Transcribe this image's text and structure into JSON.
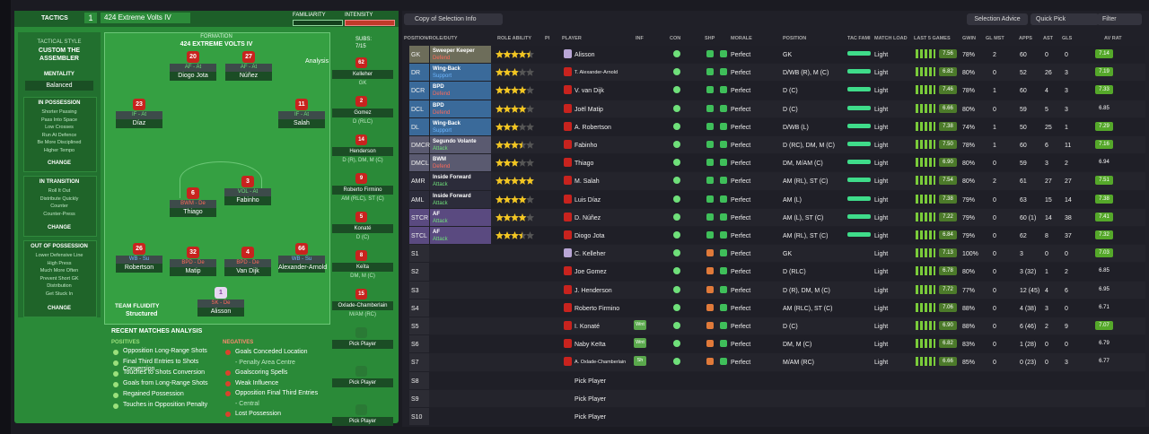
{
  "header": {
    "tab": "TACTICS",
    "slot": "1",
    "tactic": "424 Extreme Volts IV",
    "familiarity": "FAMILIARITY",
    "intensity": "INTENSITY"
  },
  "sidebar": {
    "style_label": "TACTICAL STYLE",
    "style": "CUSTOM THE ASSEMBLER",
    "mentality_label": "MENTALITY",
    "mentality": "Balanced",
    "groups": [
      {
        "title": "IN POSSESSION",
        "items": [
          "Shorter Passing",
          "Pass Into Space",
          "Low Crosses",
          "Run At Defence",
          "Be More Disciplined",
          "Higher Tempo"
        ],
        "button": "CHANGE"
      },
      {
        "title": "IN TRANSITION",
        "items": [
          "Roll It Out",
          "Distribute Quickly",
          "Counter",
          "Counter-Press"
        ],
        "button": "CHANGE"
      },
      {
        "title": "OUT OF POSSESSION",
        "items": [
          "Lower Defensive Line",
          "High Press",
          "Much More Often",
          "Prevent Short GK",
          "Distribution",
          "Get Stuck In"
        ],
        "button": "CHANGE"
      }
    ]
  },
  "pitch": {
    "label": "FORMATION",
    "formation": "424 EXTREME VOLTS IV",
    "subs_label": "SUBS:",
    "subs_count": "7/15",
    "analysis": "Analysis",
    "fluidity_label": "TEAM FLUIDITY",
    "fluidity": "Structured",
    "players": [
      {
        "number": "20",
        "role": "AF - At",
        "name": "Diogo Jota"
      },
      {
        "number": "27",
        "role": "AF - At",
        "name": "Núñez"
      },
      {
        "number": "23",
        "role": "IF - At",
        "name": "Díaz"
      },
      {
        "number": "11",
        "role": "IF - At",
        "name": "Salah"
      },
      {
        "number": "3",
        "role": "VOL - At",
        "name": "Fabinho"
      },
      {
        "number": "6",
        "role": "BWM - De",
        "name": "Thiago"
      },
      {
        "number": "26",
        "role": "WB - Su",
        "name": "Robertson"
      },
      {
        "number": "32",
        "role": "BPD - De",
        "name": "Matip"
      },
      {
        "number": "4",
        "role": "BPD - De",
        "name": "Van Dijk"
      },
      {
        "number": "66",
        "role": "WB - Su",
        "name": "Alexander-Arnold"
      },
      {
        "number": "1",
        "role": "SK - De",
        "name": "Alisson"
      }
    ],
    "bench": [
      {
        "number": "62",
        "name": "Kelleher",
        "position": "GK"
      },
      {
        "number": "2",
        "name": "Gomez",
        "position": "D (RLC)"
      },
      {
        "number": "14",
        "name": "Henderson",
        "position": "D (R), DM, M (C)"
      },
      {
        "number": "9",
        "name": "Roberto Firmino",
        "position": "AM (RLC), ST (C)"
      },
      {
        "number": "5",
        "name": "Konaté",
        "position": "D (C)"
      },
      {
        "number": "8",
        "name": "Keïta",
        "position": "DM, M (C)"
      },
      {
        "number": "15",
        "name": "Oxlade-Chamberlain",
        "position": "M/AM (RC)"
      },
      {
        "name": "Pick Player"
      },
      {
        "name": "Pick Player"
      },
      {
        "name": "Pick Player"
      }
    ]
  },
  "analysis": {
    "title": "RECENT MATCHES ANALYSIS",
    "positives_label": "POSITIVES",
    "positives": [
      "Opposition Long-Range Shots",
      "Final Third Entries to Shots Conversion",
      "Touches to Shots Conversion",
      "Goals from Long-Range Shots",
      "Regained Possession",
      "Touches in Opposition Penalty"
    ],
    "negatives_label": "NEGATIVES",
    "negatives": [
      "Goals Conceded Location",
      "- Penalty Area Centre",
      "Goalscoring Spells",
      "Weak Influence",
      "Opposition Final Third Entries",
      "- Central",
      "Lost Possession"
    ]
  },
  "toolbar": {
    "view": "Copy of Selection Info",
    "advice": "Selection Advice",
    "quick_pick": "Quick Pick",
    "filter": "Filter"
  },
  "table": {
    "columns": [
      "POSITION/ROLE/DUTY",
      "ROLE ABILITY",
      "PI",
      "PLAYER",
      "INF",
      "CON",
      "SHP",
      "MORALE",
      "POSITION",
      "TAC FAMI",
      "MATCH LOAD",
      "LAST 5 GAMES",
      "GWIN",
      "GL MST",
      "APPS",
      "AST",
      "GLS",
      "AV RAT"
    ],
    "rows": [
      {
        "slot": "GK",
        "role": "Sweeper Keeper",
        "duty": "Defend",
        "stars": 4.5,
        "player": "Alisson",
        "morale": "Perfect",
        "position": "GK",
        "load": "Light",
        "last5": "7.56",
        "gwin": "78%",
        "glmst": "2",
        "apps": "60",
        "ast": "0",
        "gls": "0",
        "avrat": "7.14"
      },
      {
        "slot": "DR",
        "role": "Wing-Back",
        "duty": "Support",
        "stars": 3,
        "player": "T. Alexander-Arnold",
        "morale": "Perfect",
        "position": "D/WB (R), M (C)",
        "load": "Light",
        "last5": "6.82",
        "gwin": "80%",
        "glmst": "0",
        "apps": "52",
        "ast": "26",
        "gls": "3",
        "avrat": "7.19"
      },
      {
        "slot": "DCR",
        "role": "BPD",
        "duty": "Defend",
        "stars": 4,
        "player": "V. van Dijk",
        "morale": "Perfect",
        "position": "D (C)",
        "load": "Light",
        "last5": "7.46",
        "gwin": "78%",
        "glmst": "1",
        "apps": "60",
        "ast": "4",
        "gls": "3",
        "avrat": "7.33"
      },
      {
        "slot": "DCL",
        "role": "BPD",
        "duty": "Defend",
        "stars": 4,
        "player": "Joël Matip",
        "morale": "Perfect",
        "position": "D (C)",
        "load": "Light",
        "last5": "6.66",
        "gwin": "80%",
        "glmst": "0",
        "apps": "59",
        "ast": "5",
        "gls": "3",
        "avrat": "6.85"
      },
      {
        "slot": "DL",
        "role": "Wing-Back",
        "duty": "Support",
        "stars": 3,
        "player": "A. Robertson",
        "morale": "Perfect",
        "position": "D/WB (L)",
        "load": "Light",
        "last5": "7.38",
        "gwin": "74%",
        "glmst": "1",
        "apps": "50",
        "ast": "25",
        "gls": "1",
        "avrat": "7.29"
      },
      {
        "slot": "DMCR",
        "role": "Segundo Volante",
        "duty": "Attack",
        "stars": 3.5,
        "player": "Fabinho",
        "morale": "Perfect",
        "position": "D (RC), DM, M (C)",
        "load": "Light",
        "last5": "7.50",
        "gwin": "78%",
        "glmst": "1",
        "apps": "60",
        "ast": "6",
        "gls": "11",
        "avrat": "7.16"
      },
      {
        "slot": "DMCL",
        "role": "BWM",
        "duty": "Defend",
        "stars": 3,
        "player": "Thiago",
        "morale": "Perfect",
        "position": "DM, M/AM (C)",
        "load": "Light",
        "last5": "6.90",
        "gwin": "80%",
        "glmst": "0",
        "apps": "59",
        "ast": "3",
        "gls": "2",
        "avrat": "6.94"
      },
      {
        "slot": "AMR",
        "role": "Inside Forward",
        "duty": "Attack",
        "stars": 5,
        "player": "M. Salah",
        "morale": "Perfect",
        "position": "AM (RL), ST (C)",
        "load": "Light",
        "last5": "7.54",
        "gwin": "80%",
        "glmst": "2",
        "apps": "61",
        "ast": "27",
        "gls": "27",
        "avrat": "7.51"
      },
      {
        "slot": "AML",
        "role": "Inside Forward",
        "duty": "Attack",
        "stars": 4,
        "player": "Luis Díaz",
        "morale": "Perfect",
        "position": "AM (L)",
        "load": "Light",
        "last5": "7.38",
        "gwin": "79%",
        "glmst": "0",
        "apps": "63",
        "ast": "15",
        "gls": "14",
        "avrat": "7.38"
      },
      {
        "slot": "STCR",
        "role": "AF",
        "duty": "Attack",
        "stars": 4,
        "player": "D. Núñez",
        "morale": "Perfect",
        "position": "AM (L), ST (C)",
        "load": "Light",
        "last5": "7.22",
        "gwin": "79%",
        "glmst": "0",
        "apps": "60 (1)",
        "ast": "14",
        "gls": "38",
        "avrat": "7.41"
      },
      {
        "slot": "STCL",
        "role": "AF",
        "duty": "Attack",
        "stars": 3.5,
        "player": "Diogo Jota",
        "morale": "Perfect",
        "position": "AM (RL), ST (C)",
        "load": "Light",
        "last5": "6.84",
        "gwin": "79%",
        "glmst": "0",
        "apps": "62",
        "ast": "8",
        "gls": "37",
        "avrat": "7.32"
      },
      {
        "slot": "S1",
        "player": "C. Kelleher",
        "morale": "Perfect",
        "position": "GK",
        "load": "Light",
        "last5": "7.13",
        "gwin": "100%",
        "glmst": "0",
        "apps": "3",
        "ast": "0",
        "gls": "0",
        "avrat": "7.03"
      },
      {
        "slot": "S2",
        "player": "Joe Gomez",
        "morale": "Perfect",
        "position": "D (RLC)",
        "load": "Light",
        "last5": "6.78",
        "gwin": "80%",
        "glmst": "0",
        "apps": "3 (32)",
        "ast": "1",
        "gls": "2",
        "avrat": "6.85"
      },
      {
        "slot": "S3",
        "player": "J. Henderson",
        "morale": "Perfect",
        "position": "D (R), DM, M (C)",
        "load": "Light",
        "last5": "7.72",
        "gwin": "77%",
        "glmst": "0",
        "apps": "12 (45)",
        "ast": "4",
        "gls": "6",
        "avrat": "6.95"
      },
      {
        "slot": "S4",
        "player": "Roberto Firmino",
        "morale": "Perfect",
        "position": "AM (RLC), ST (C)",
        "load": "Light",
        "last5": "7.06",
        "gwin": "88%",
        "glmst": "0",
        "apps": "4 (38)",
        "ast": "3",
        "gls": "0",
        "avrat": "6.71"
      },
      {
        "slot": "S5",
        "player": "I. Konaté",
        "inf": "Wnt",
        "morale": "Perfect",
        "position": "D (C)",
        "load": "Light",
        "last5": "6.90",
        "gwin": "88%",
        "glmst": "0",
        "apps": "6 (46)",
        "ast": "2",
        "gls": "9",
        "avrat": "7.07"
      },
      {
        "slot": "S6",
        "player": "Naby Keïta",
        "inf": "Wnt",
        "morale": "Perfect",
        "position": "DM, M (C)",
        "load": "Light",
        "last5": "6.82",
        "gwin": "83%",
        "glmst": "0",
        "apps": "1 (28)",
        "ast": "0",
        "gls": "0",
        "avrat": "6.79"
      },
      {
        "slot": "S7",
        "player": "A. Oxlade-Chamberlain",
        "inf": "Sh",
        "morale": "Perfect",
        "position": "M/AM (RC)",
        "load": "Light",
        "last5": "6.66",
        "gwin": "85%",
        "glmst": "0",
        "apps": "0 (23)",
        "ast": "0",
        "gls": "3",
        "avrat": "6.77"
      },
      {
        "slot": "S8",
        "player": "Pick Player"
      },
      {
        "slot": "S9",
        "player": "Pick Player"
      },
      {
        "slot": "S10",
        "player": "Pick Player"
      }
    ]
  }
}
